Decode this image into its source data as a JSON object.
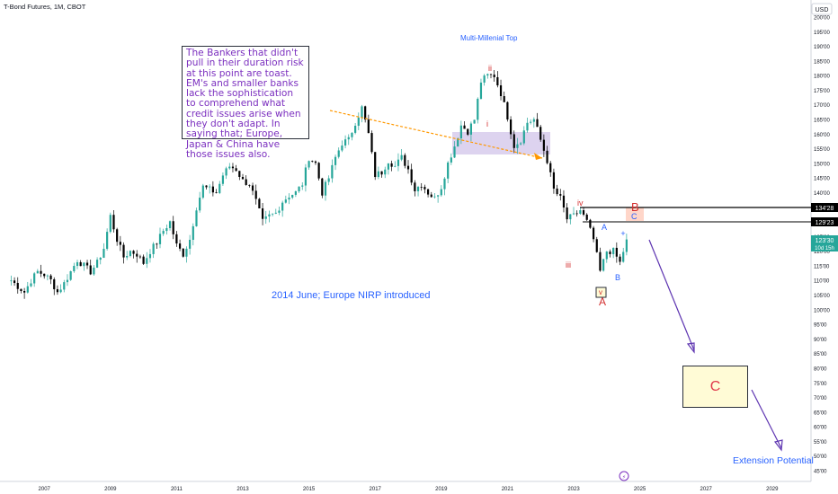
{
  "header": {
    "symbol_label": "T-Bond Futures, 1M, CBOT",
    "currency": "USD"
  },
  "annotations": {
    "box_text": "The Bankers that didn't pull in their duration risk at this point are toast. EM's and smaller banks lack the sophistication to comprehend what credit issues arise when they don't adapt. In saying that; Europe, Japan & China have those issues also.",
    "top_label": "Multi-Millenial Top",
    "nirp_label": "2014 June; Europe NIRP introduced",
    "extension_label": "Extension Potential",
    "wave_labels": {
      "ii": "ii",
      "i": "i",
      "iii": "iii",
      "iv": "iv",
      "v": "v",
      "A_red": "A",
      "B_red": "B",
      "C_blue": "C",
      "A_blue": "A",
      "B_blue": "B",
      "C_target": "C"
    }
  },
  "price_labels": {
    "line_1": "134'28",
    "line_2": "129'23",
    "current": "123'30",
    "countdown": "10d 15h"
  },
  "footer": {
    "logo_glyph": "⚡"
  },
  "colors": {
    "up": "#26a69a",
    "down": "#000000",
    "wave_red": "#d32f2f",
    "wave_blue": "#2962ff",
    "annotation": "#7b2fbf",
    "arrow_orange": "#ff9800"
  },
  "chart_data": {
    "type": "candlestick",
    "title": "T-Bond Futures, 1M, CBOT",
    "y_unit": "USD",
    "ylim": [
      42,
      204
    ],
    "xlim": [
      "2006-01",
      "2030-02"
    ],
    "y_ticks": [
      "200'00",
      "195'00",
      "190'00",
      "185'00",
      "180'00",
      "175'00",
      "170'00",
      "165'00",
      "160'00",
      "155'00",
      "150'00",
      "145'00",
      "140'00",
      "135'00",
      "130'00",
      "125'00",
      "120'00",
      "115'00",
      "110'00",
      "105'00",
      "100'00",
      "95'00",
      "90'00",
      "85'00",
      "80'00",
      "75'00",
      "70'00",
      "65'00",
      "60'00",
      "55'00",
      "50'00",
      "45'00"
    ],
    "x_ticks": [
      "2007",
      "2009",
      "2011",
      "2013",
      "2015",
      "2017",
      "2019",
      "2021",
      "2023",
      "2025",
      "2027",
      "2029"
    ],
    "grid": false,
    "closes": [
      [
        2006.0,
        110
      ],
      [
        2006.2,
        108
      ],
      [
        2006.4,
        106
      ],
      [
        2006.6,
        110
      ],
      [
        2006.8,
        113
      ],
      [
        2007.0,
        112
      ],
      [
        2007.2,
        110
      ],
      [
        2007.4,
        106
      ],
      [
        2007.6,
        109
      ],
      [
        2007.8,
        113
      ],
      [
        2008.0,
        117
      ],
      [
        2008.2,
        115
      ],
      [
        2008.4,
        113
      ],
      [
        2008.6,
        116
      ],
      [
        2008.8,
        121
      ],
      [
        2009.0,
        132
      ],
      [
        2009.2,
        124
      ],
      [
        2009.4,
        118
      ],
      [
        2009.6,
        120
      ],
      [
        2009.8,
        119
      ],
      [
        2010.0,
        116
      ],
      [
        2010.2,
        120
      ],
      [
        2010.4,
        123
      ],
      [
        2010.6,
        127
      ],
      [
        2010.8,
        130
      ],
      [
        2011.0,
        122
      ],
      [
        2011.2,
        119
      ],
      [
        2011.4,
        124
      ],
      [
        2011.6,
        135
      ],
      [
        2011.8,
        142
      ],
      [
        2012.0,
        141
      ],
      [
        2012.2,
        140
      ],
      [
        2012.4,
        146
      ],
      [
        2012.6,
        149
      ],
      [
        2012.8,
        148
      ],
      [
        2013.0,
        144
      ],
      [
        2013.2,
        143
      ],
      [
        2013.4,
        137
      ],
      [
        2013.6,
        130
      ],
      [
        2013.8,
        132
      ],
      [
        2014.0,
        133
      ],
      [
        2014.2,
        137
      ],
      [
        2014.4,
        139
      ],
      [
        2014.6,
        140
      ],
      [
        2014.8,
        143
      ],
      [
        2015.0,
        152
      ],
      [
        2015.2,
        150
      ],
      [
        2015.4,
        140
      ],
      [
        2015.6,
        145
      ],
      [
        2015.8,
        152
      ],
      [
        2016.0,
        157
      ],
      [
        2016.2,
        158
      ],
      [
        2016.4,
        164
      ],
      [
        2016.6,
        169
      ],
      [
        2016.8,
        160
      ],
      [
        2017.0,
        146
      ],
      [
        2017.2,
        147
      ],
      [
        2017.4,
        151
      ],
      [
        2017.6,
        149
      ],
      [
        2017.8,
        152
      ],
      [
        2018.0,
        148
      ],
      [
        2018.2,
        141
      ],
      [
        2018.4,
        143
      ],
      [
        2018.6,
        140
      ],
      [
        2018.8,
        138
      ],
      [
        2019.0,
        142
      ],
      [
        2019.2,
        150
      ],
      [
        2019.4,
        156
      ],
      [
        2019.6,
        163
      ],
      [
        2019.8,
        161
      ],
      [
        2020.0,
        165
      ],
      [
        2020.2,
        178
      ],
      [
        2020.4,
        180
      ],
      [
        2020.6,
        180
      ],
      [
        2020.8,
        174
      ],
      [
        2021.0,
        166
      ],
      [
        2021.2,
        156
      ],
      [
        2021.4,
        158
      ],
      [
        2021.6,
        164
      ],
      [
        2021.8,
        165
      ],
      [
        2022.0,
        158
      ],
      [
        2022.2,
        151
      ],
      [
        2022.4,
        141
      ],
      [
        2022.6,
        138
      ],
      [
        2022.8,
        131
      ],
      [
        2023.0,
        132
      ],
      [
        2023.2,
        134
      ],
      [
        2023.4,
        130
      ],
      [
        2023.6,
        124
      ],
      [
        2023.8,
        113
      ],
      [
        2024.0,
        120
      ],
      [
        2024.2,
        120
      ],
      [
        2024.4,
        116
      ],
      [
        2024.6,
        124
      ]
    ]
  }
}
